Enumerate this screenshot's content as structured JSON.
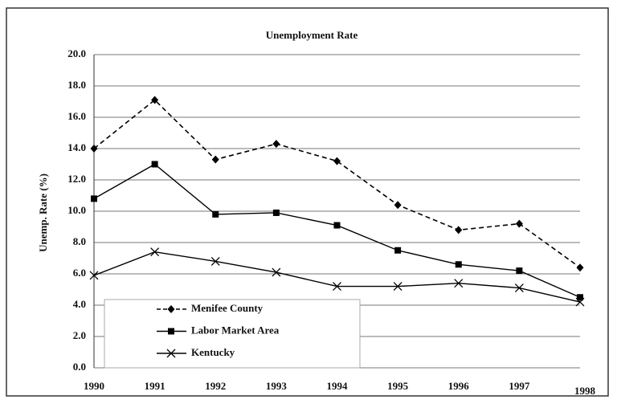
{
  "chart_data": {
    "type": "line",
    "title": "Unemployment Rate",
    "y_label": "Unemp. Rate (%)",
    "categories": [
      "1990",
      "1991",
      "1992",
      "1993",
      "1994",
      "1995",
      "1996",
      "1997",
      "1998"
    ],
    "series": [
      {
        "name": "Menifee County",
        "color": "#000000",
        "dash": true,
        "marker": "diamond",
        "values": [
          14.0,
          17.1,
          13.3,
          14.3,
          13.2,
          10.4,
          8.8,
          9.2,
          6.4
        ]
      },
      {
        "name": "Labor Market Area",
        "color": "#000000",
        "dash": false,
        "marker": "square",
        "values": [
          10.8,
          13.0,
          9.8,
          9.9,
          9.1,
          7.5,
          6.6,
          6.2,
          4.5
        ]
      },
      {
        "name": "Kentucky",
        "color": "#000000",
        "dash": false,
        "marker": "x",
        "values": [
          5.9,
          7.4,
          6.8,
          6.1,
          5.2,
          5.2,
          5.4,
          5.1,
          4.2
        ]
      }
    ],
    "ylim": [
      0,
      20
    ],
    "yticks": [
      {
        "value": 0,
        "label": "0.0"
      },
      {
        "value": 2,
        "label": "2.0"
      },
      {
        "value": 4,
        "label": "4.0"
      },
      {
        "value": 6,
        "label": "6.0"
      },
      {
        "value": 8,
        "label": "8.0"
      },
      {
        "value": 10,
        "label": "10.0"
      },
      {
        "value": 12,
        "label": "12.0"
      },
      {
        "value": 14,
        "label": "14.0"
      },
      {
        "value": 16,
        "label": "16.0"
      },
      {
        "value": 18,
        "label": "18.0"
      },
      {
        "value": 20,
        "label": "20.0"
      }
    ],
    "grid": true,
    "legend_position": "lower left"
  }
}
